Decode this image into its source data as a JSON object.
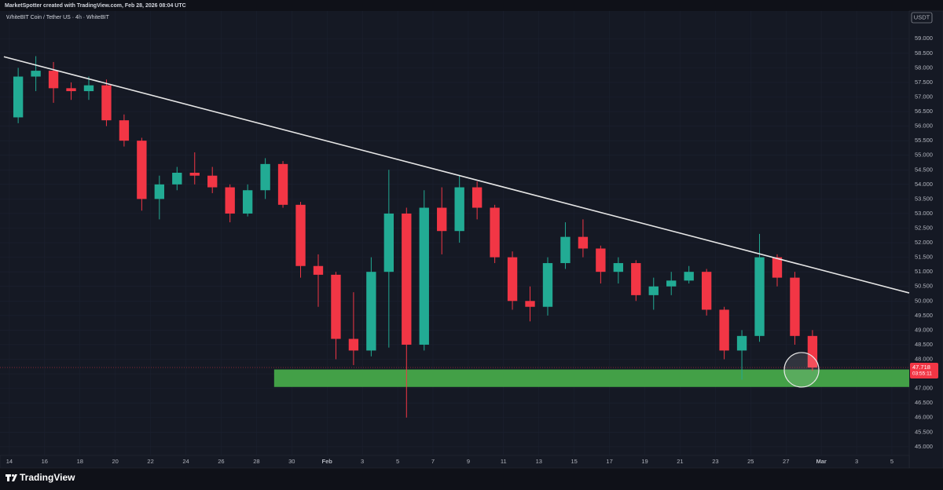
{
  "header": "MarketSpotter created with TradingView.com, Feb 28, 2026 08:04 UTC",
  "footer": "TradingView",
  "chart_data": {
    "type": "candlestick",
    "title": "WhiteBIT Coin / Tether US · 4h · WhiteBIT",
    "currency": "USDT",
    "up_color": "#22ab94",
    "down_color": "#f23645",
    "x": [
      14.5,
      15.5,
      16.5,
      17.5,
      18.5,
      19.5,
      20.5,
      21.5,
      22.5,
      23.5,
      24.5,
      25.5,
      26.5,
      27.5,
      28.5,
      29.5,
      30.5,
      31.5,
      32.5,
      33.5,
      34.5,
      35.5,
      36.5,
      37.5,
      38.5,
      39.5,
      40.5,
      41.5,
      42.5,
      43.5,
      44.5,
      45.5,
      46.5,
      47.5,
      48.5,
      49.5,
      50.5,
      51.5,
      52.5,
      53.5,
      54.5,
      55.5,
      56.5,
      57.5,
      58.5,
      59.5
    ],
    "open": [
      56300,
      57700,
      57900,
      57300,
      57200,
      57400,
      56200,
      55500,
      53500,
      54000,
      54400,
      54300,
      53900,
      53000,
      53800,
      54700,
      53300,
      51200,
      50900,
      48700,
      48300,
      51000,
      53000,
      48500,
      53200,
      52400,
      53900,
      53200,
      51500,
      50000,
      49800,
      51300,
      52200,
      51800,
      51000,
      51300,
      50200,
      50500,
      50700,
      51000,
      49700,
      48300,
      48800,
      51500,
      50800,
      48800
    ],
    "high": [
      58000,
      58400,
      58200,
      57500,
      57700,
      57600,
      56400,
      55600,
      54300,
      54600,
      55100,
      54600,
      54000,
      54000,
      54900,
      54800,
      53400,
      51600,
      51000,
      50300,
      51500,
      54500,
      53200,
      53800,
      53900,
      54300,
      54100,
      53300,
      51700,
      50500,
      51500,
      52700,
      52800,
      51900,
      51500,
      51400,
      50800,
      51000,
      51200,
      51100,
      49800,
      49000,
      52300,
      51600,
      51000,
      49000
    ],
    "low": [
      56100,
      57200,
      56800,
      56900,
      56900,
      56000,
      55300,
      53100,
      52800,
      53800,
      54000,
      53700,
      52700,
      52900,
      53500,
      53200,
      50800,
      49800,
      48000,
      47800,
      48100,
      48400,
      46000,
      48300,
      51600,
      52000,
      52800,
      51300,
      49700,
      49300,
      49500,
      51100,
      51500,
      50600,
      50600,
      50000,
      49700,
      50200,
      50600,
      49500,
      48000,
      47300,
      48600,
      50500,
      48500,
      47600
    ],
    "close": [
      57700,
      57900,
      57300,
      57200,
      57400,
      56200,
      55500,
      53500,
      54000,
      54400,
      54300,
      53900,
      53000,
      53800,
      54700,
      53300,
      51200,
      50900,
      48700,
      48300,
      51000,
      53000,
      48500,
      53200,
      52400,
      53900,
      53200,
      51500,
      50000,
      49800,
      51300,
      52200,
      51800,
      51000,
      51300,
      50200,
      50500,
      50700,
      51000,
      49700,
      48300,
      48800,
      51500,
      50800,
      48800,
      47718
    ],
    "xlim": [
      13.47,
      64.98
    ],
    "ylim": [
      44700,
      59950
    ],
    "xticks": [
      14,
      16,
      18,
      20,
      22,
      24,
      26,
      28,
      30,
      {
        "value": 32,
        "label": "Feb"
      },
      {
        "value": 34,
        "label": "3"
      },
      {
        "value": 36,
        "label": "5"
      },
      {
        "value": 38,
        "label": "7"
      },
      {
        "value": 40,
        "label": "9"
      },
      {
        "value": 42,
        "label": "11"
      },
      {
        "value": 44,
        "label": "13"
      },
      {
        "value": 46,
        "label": "15"
      },
      {
        "value": 48,
        "label": "17"
      },
      {
        "value": 50,
        "label": "19"
      },
      {
        "value": 52,
        "label": "21"
      },
      {
        "value": 54,
        "label": "23"
      },
      {
        "value": 56,
        "label": "25"
      },
      {
        "value": 58,
        "label": "27"
      },
      {
        "value": 60,
        "label": "Mar"
      },
      {
        "value": 62,
        "label": "3"
      },
      {
        "value": 64,
        "label": "5"
      }
    ],
    "yticks": [
      {
        "value": 45000,
        "label": "45.000"
      },
      {
        "value": 45500,
        "label": "45.500"
      },
      {
        "value": 46000,
        "label": "46.000"
      },
      {
        "value": 46500,
        "label": "46.500"
      },
      {
        "value": 47000,
        "label": "47.000"
      },
      {
        "value": 47500,
        "label": "47.500"
      },
      {
        "value": 48000,
        "label": "48.000"
      },
      {
        "value": 48500,
        "label": "48.500"
      },
      {
        "value": 49000,
        "label": "49.000"
      },
      {
        "value": 49500,
        "label": "49.500"
      },
      {
        "value": 50000,
        "label": "50.000"
      },
      {
        "value": 50500,
        "label": "50.500"
      },
      {
        "value": 51000,
        "label": "51.000"
      },
      {
        "value": 51500,
        "label": "51.500"
      },
      {
        "value": 52000,
        "label": "52.000"
      },
      {
        "value": 52500,
        "label": "52.500"
      },
      {
        "value": 53000,
        "label": "53.000"
      },
      {
        "value": 53500,
        "label": "53.500"
      },
      {
        "value": 54000,
        "label": "54.000"
      },
      {
        "value": 54500,
        "label": "54.500"
      },
      {
        "value": 55000,
        "label": "55.000"
      },
      {
        "value": 55500,
        "label": "55.500"
      },
      {
        "value": 56000,
        "label": "56.000"
      },
      {
        "value": 56500,
        "label": "56.500"
      },
      {
        "value": 57000,
        "label": "57.000"
      },
      {
        "value": 57500,
        "label": "57.500"
      },
      {
        "value": 58000,
        "label": "58.000"
      },
      {
        "value": 58500,
        "label": "58.500"
      },
      {
        "value": 59000,
        "label": "59.000"
      }
    ],
    "grid": true,
    "trendline": {
      "x": [
        13.69,
        64.98
      ],
      "values": [
        58381,
        50276
      ],
      "color": "#e6e6e6"
    },
    "zone": {
      "x0": 29.0,
      "low": 47050,
      "high": 47650,
      "color": "#43a047"
    },
    "circle": {
      "x": 58.88,
      "value": 47638,
      "color": "#e6e6e6"
    },
    "last_price": {
      "value": 47718,
      "label": "47.718"
    },
    "countdown": "03:55:11"
  }
}
